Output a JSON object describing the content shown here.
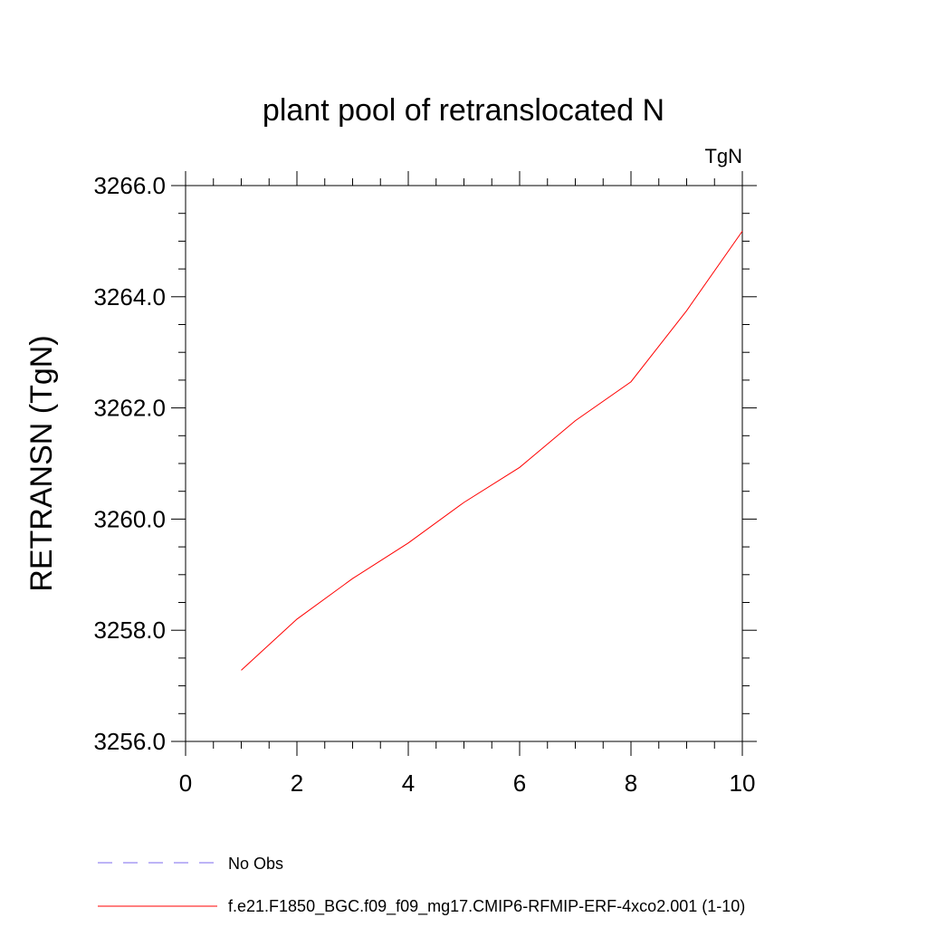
{
  "chart_data": {
    "type": "line",
    "title": "plant pool of retranslocated N",
    "units_label": "TgN",
    "xlabel": "",
    "ylabel": "RETRANSN  (TgN)",
    "xlim": [
      0,
      10
    ],
    "ylim": [
      3256.0,
      3266.0
    ],
    "x_ticks": [
      0,
      2,
      4,
      6,
      8,
      10
    ],
    "x_tick_labels": [
      "0",
      "2",
      "4",
      "6",
      "8",
      "10"
    ],
    "y_ticks": [
      3256.0,
      3258.0,
      3260.0,
      3262.0,
      3264.0,
      3266.0
    ],
    "y_tick_labels": [
      "3256.0",
      "3258.0",
      "3260.0",
      "3262.0",
      "3264.0",
      "3266.0"
    ],
    "grid": false,
    "series": [
      {
        "name": "f.e21.F1850_BGC.f09_f09_mg17.CMIP6-RFMIP-ERF-4xco2.001 (1-10)",
        "color": "#ff0000",
        "x": [
          1,
          2,
          3,
          4,
          5,
          6,
          7,
          8,
          9,
          10
        ],
        "values": [
          3257.28,
          3258.2,
          3258.93,
          3259.57,
          3260.3,
          3260.93,
          3261.77,
          3262.47,
          3263.75,
          3265.18
        ]
      }
    ],
    "legend": {
      "placement": "bottom",
      "entries": [
        {
          "label": "No Obs",
          "color": "#7b68ee",
          "style": "dashed"
        },
        {
          "label": "f.e21.F1850_BGC.f09_f09_mg17.CMIP6-RFMIP-ERF-4xco2.001 (1-10)",
          "color": "#ff0000",
          "style": "solid"
        }
      ]
    }
  }
}
